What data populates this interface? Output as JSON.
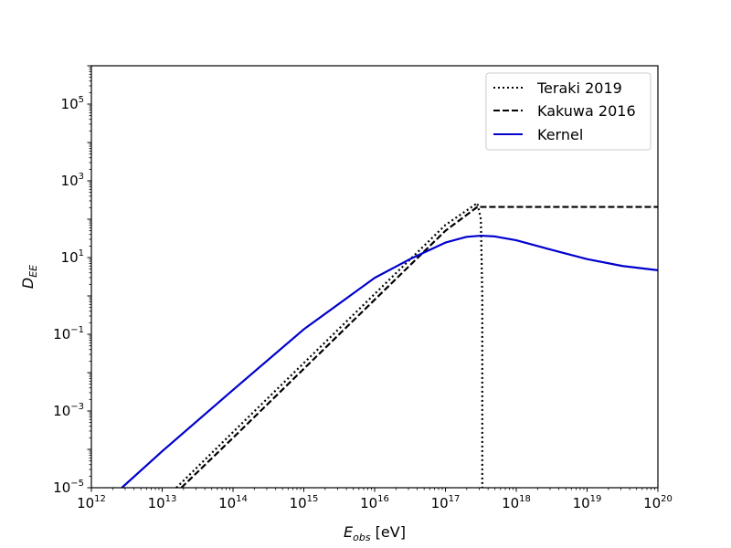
{
  "chart_data": {
    "type": "line",
    "title": "",
    "xlabel": {
      "main": "E",
      "sub": "obs",
      "suffix": " [eV]"
    },
    "ylabel": {
      "main": "D",
      "sub": "EE"
    },
    "x_scale": "log",
    "y_scale": "log",
    "xlim_exp": [
      12,
      20
    ],
    "ylim_exp": [
      -5,
      6
    ],
    "x_ticks": [
      {
        "base": "10",
        "exp": "12",
        "value": 12
      },
      {
        "base": "10",
        "exp": "13",
        "value": 13
      },
      {
        "base": "10",
        "exp": "14",
        "value": 14
      },
      {
        "base": "10",
        "exp": "15",
        "value": 15
      },
      {
        "base": "10",
        "exp": "16",
        "value": 16
      },
      {
        "base": "10",
        "exp": "17",
        "value": 17
      },
      {
        "base": "10",
        "exp": "18",
        "value": 18
      },
      {
        "base": "10",
        "exp": "19",
        "value": 19
      },
      {
        "base": "10",
        "exp": "20",
        "value": 20
      }
    ],
    "y_ticks": [
      {
        "base": "10",
        "exp": "−5",
        "value": -5
      },
      {
        "base": "10",
        "exp": "−3",
        "value": -3
      },
      {
        "base": "10",
        "exp": "−1",
        "value": -1
      },
      {
        "base": "10",
        "exp": "1",
        "value": 1
      },
      {
        "base": "10",
        "exp": "3",
        "value": 3
      },
      {
        "base": "10",
        "exp": "5",
        "value": 5
      }
    ],
    "grid": false,
    "legend_position": "top-right",
    "series": [
      {
        "name": "Teraki 2019",
        "style": "dotted",
        "color": "#000000",
        "points_log10": [
          [
            13.2,
            -5.0
          ],
          [
            14.0,
            -3.55
          ],
          [
            15.0,
            -1.75
          ],
          [
            16.0,
            0.05
          ],
          [
            17.0,
            1.85
          ],
          [
            17.45,
            2.42
          ],
          [
            17.5,
            2.0
          ],
          [
            17.52,
            0.0
          ],
          [
            17.52,
            -5.0
          ]
        ]
      },
      {
        "name": "Kakuwa 2016",
        "style": "dashed",
        "color": "#000000",
        "points_log10": [
          [
            13.27,
            -5.0
          ],
          [
            14.0,
            -3.7
          ],
          [
            15.0,
            -1.9
          ],
          [
            16.0,
            -0.1
          ],
          [
            17.0,
            1.7
          ],
          [
            17.45,
            2.32
          ],
          [
            18.0,
            2.32
          ],
          [
            19.0,
            2.32
          ],
          [
            20.0,
            2.32
          ]
        ]
      },
      {
        "name": "Kernel",
        "style": "solid",
        "color": "#0000cc",
        "points_log10": [
          [
            12.43,
            -5.0
          ],
          [
            13.0,
            -4.05
          ],
          [
            14.0,
            -2.45
          ],
          [
            15.0,
            -0.87
          ],
          [
            16.0,
            0.47
          ],
          [
            16.5,
            0.96
          ],
          [
            17.0,
            1.39
          ],
          [
            17.3,
            1.54
          ],
          [
            17.5,
            1.57
          ],
          [
            17.7,
            1.55
          ],
          [
            18.0,
            1.45
          ],
          [
            18.5,
            1.2
          ],
          [
            19.0,
            0.96
          ],
          [
            19.5,
            0.78
          ],
          [
            20.0,
            0.67
          ]
        ]
      }
    ]
  }
}
